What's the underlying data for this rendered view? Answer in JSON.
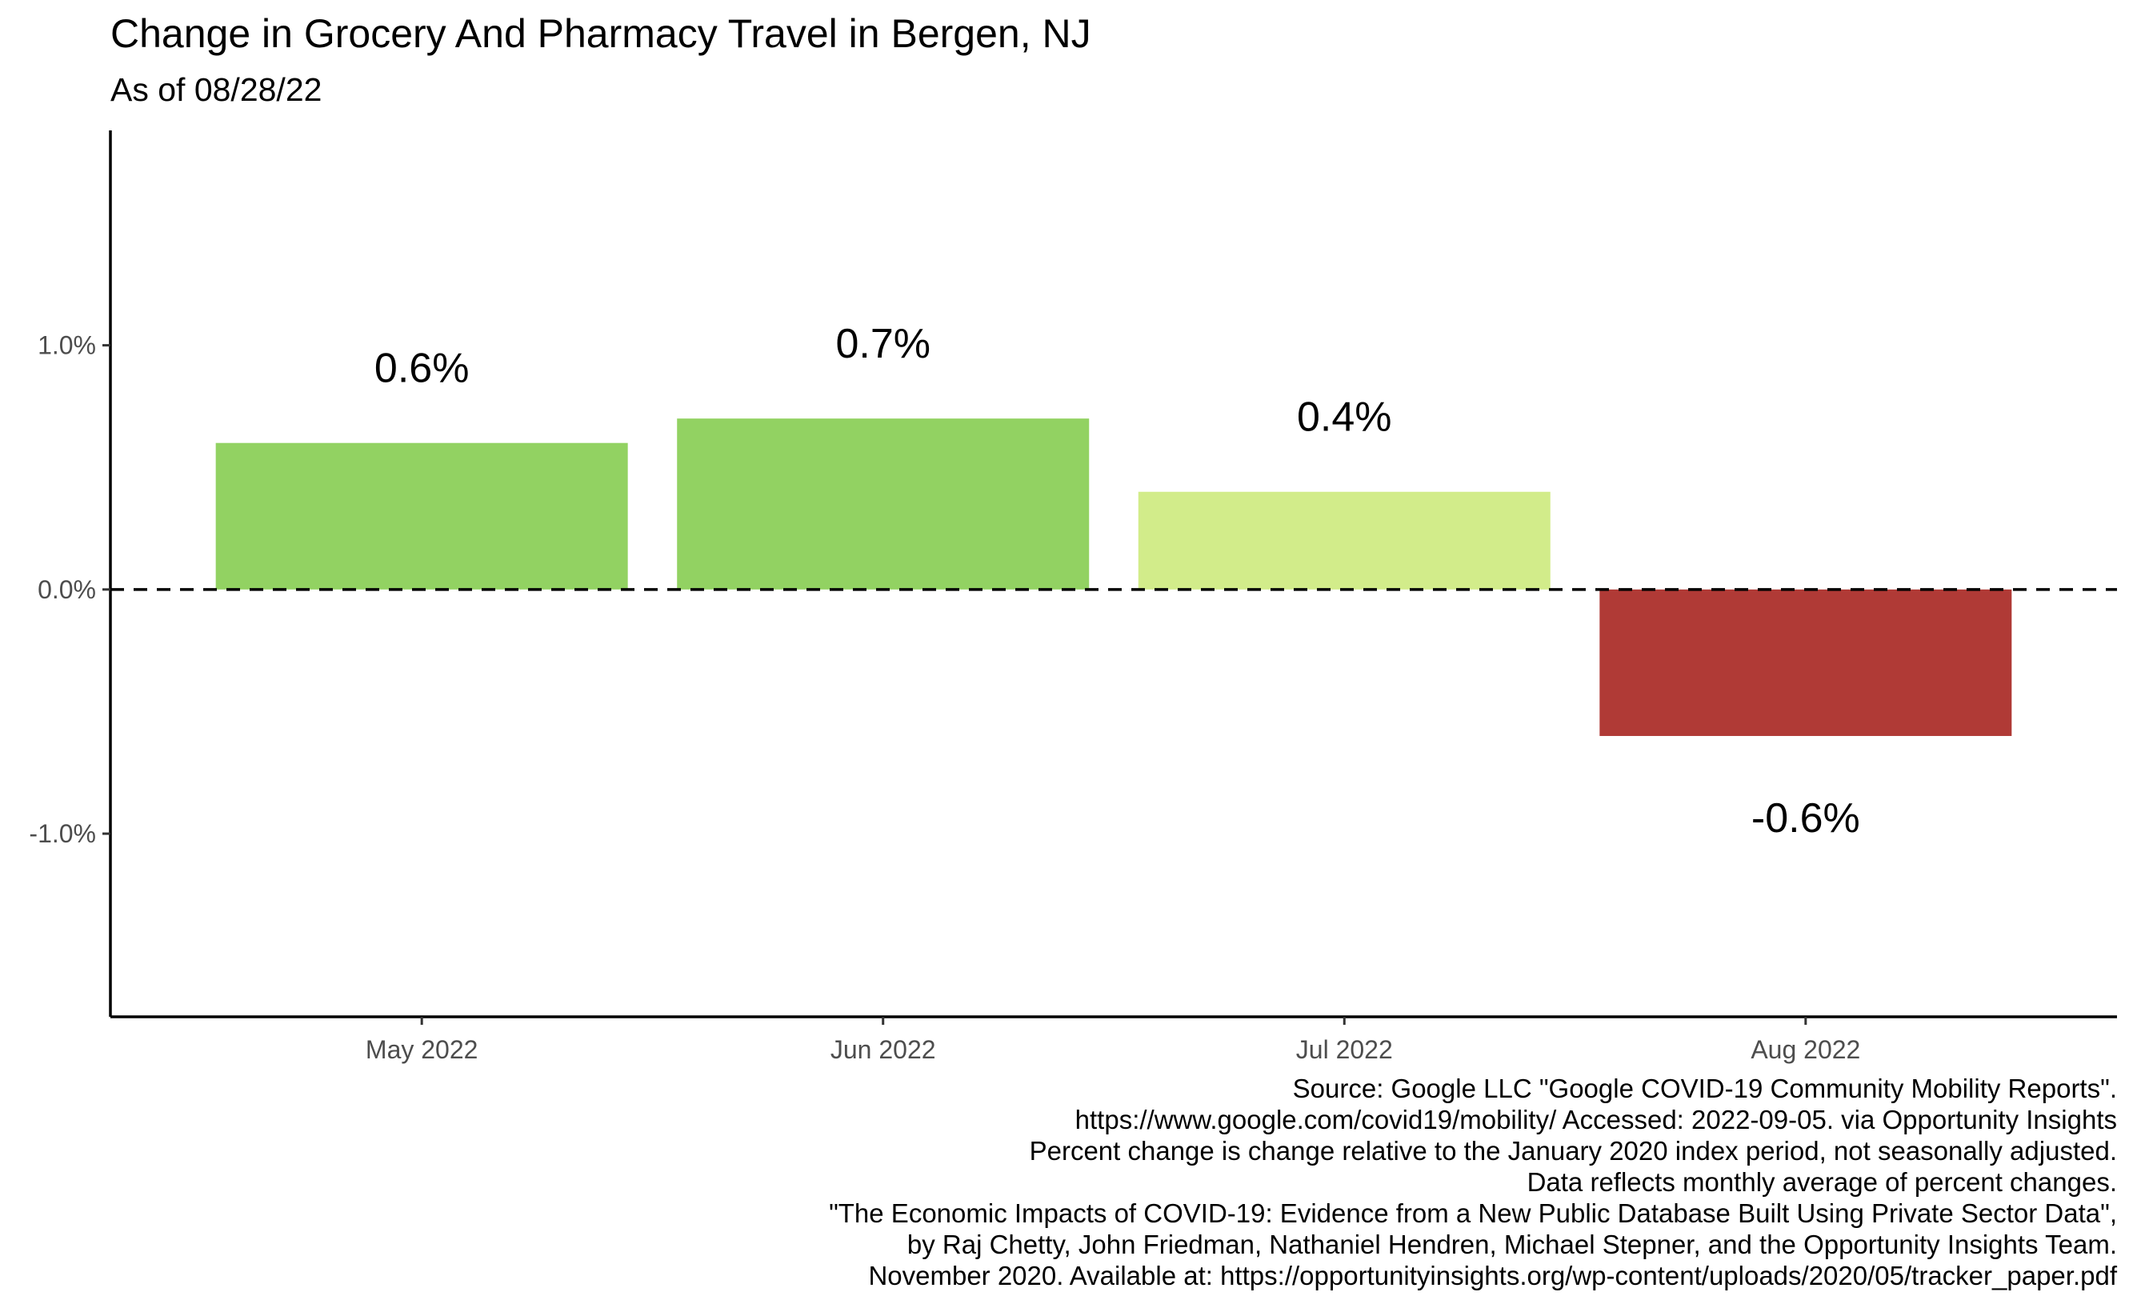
{
  "title": "Change in Grocery And Pharmacy Travel in Bergen, NJ",
  "subtitle": "As of 08/28/22",
  "chart_data": {
    "type": "bar",
    "categories": [
      "May 2022",
      "Jun 2022",
      "Jul 2022",
      "Aug 2022"
    ],
    "values": [
      0.6,
      0.7,
      0.4,
      -0.6
    ],
    "data_labels": [
      "0.6%",
      "0.7%",
      "0.4%",
      "-0.6%"
    ],
    "bar_colors": [
      "#92d262",
      "#92d262",
      "#d2ec8a",
      "#b03a36"
    ],
    "ylim": [
      -1.75,
      1.88
    ],
    "yticks": [
      -1.0,
      0.0,
      1.0
    ],
    "ytick_labels": [
      "-1.0%",
      "0.0%",
      "1.0%"
    ],
    "reference_line": 0,
    "xlabel": "",
    "ylabel": "",
    "grid": false,
    "legend": "none"
  },
  "caption": [
    "Source: Google LLC \"Google COVID-19 Community Mobility Reports\".",
    "https://www.google.com/covid19/mobility/ Accessed: 2022-09-05. via Opportunity Insights",
    "Percent change is change relative to the January 2020 index period, not seasonally adjusted.",
    "Data reflects monthly average of percent changes.",
    "\"The Economic Impacts of COVID-19: Evidence from a New Public Database Built Using Private Sector Data\",",
    "by Raj Chetty, John Friedman, Nathaniel Hendren, Michael Stepner, and the Opportunity Insights Team.",
    "November 2020. Available at: https://opportunityinsights.org/wp-content/uploads/2020/05/tracker_paper.pdf"
  ]
}
